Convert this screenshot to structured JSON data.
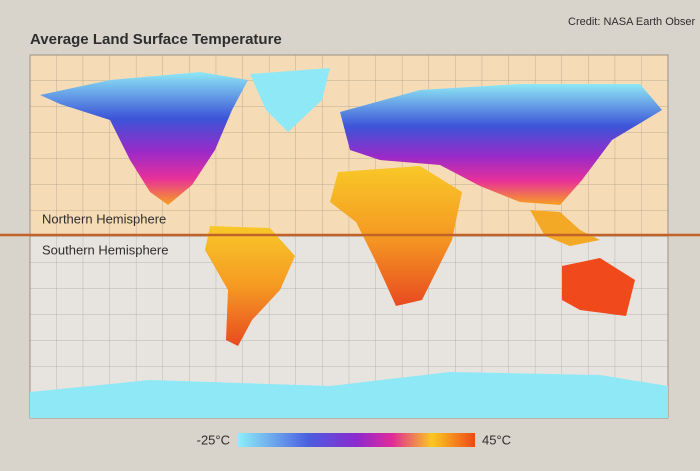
{
  "title": "Average Land Surface Temperature",
  "credit": "Credit: NASA Earth Obser",
  "hemispheres": {
    "north": "Northern Hemisphere",
    "south": "Southern Hemisphere"
  },
  "legend": {
    "min": "-25°C",
    "max": "45°C"
  }
}
